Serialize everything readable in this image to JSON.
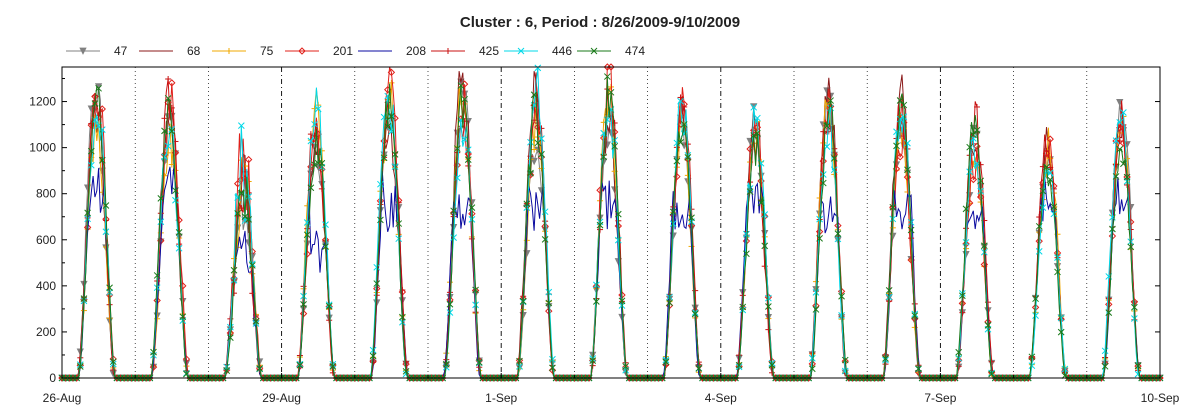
{
  "chart_data": {
    "type": "line",
    "title": "Cluster : 6, Period : 8/26/2009-9/10/2009",
    "xlabel": "",
    "ylabel": "",
    "x_range_days": [
      "2009-08-26",
      "2009-09-10"
    ],
    "x_ticks": [
      "26-Aug",
      "29-Aug",
      "1-Sep",
      "4-Sep",
      "7-Sep",
      "10-Sep"
    ],
    "ylim": [
      0,
      1350
    ],
    "y_ticks": [
      0,
      200,
      400,
      600,
      800,
      1000,
      1200
    ],
    "grid": "vertical dotted lines at midnight of each day; dash-dot at major ticks",
    "legend_position": "top",
    "series": [
      {
        "name": "47",
        "color": "#808080",
        "marker": "triangle-down"
      },
      {
        "name": "68",
        "color": "#8b1a1a",
        "marker": "none"
      },
      {
        "name": "75",
        "color": "#f0a800",
        "marker": "plus"
      },
      {
        "name": "201",
        "color": "#e0201a",
        "marker": "diamond"
      },
      {
        "name": "208",
        "color": "#0a0aa0",
        "marker": "none"
      },
      {
        "name": "425",
        "color": "#c81010",
        "marker": "plus"
      },
      {
        "name": "446",
        "color": "#00d8e8",
        "marker": "x"
      },
      {
        "name": "474",
        "color": "#1a7a1a",
        "marker": "x"
      }
    ],
    "daily_peaks": [
      {
        "date": "2009-08-26",
        "peak": 1290,
        "blue_plateau": 790
      },
      {
        "date": "2009-08-27",
        "peak": 1230,
        "blue_plateau": 850
      },
      {
        "date": "2009-08-28",
        "peak": 1000,
        "blue_plateau": 600
      },
      {
        "date": "2009-08-29",
        "peak": 1200,
        "blue_plateau": 560
      },
      {
        "date": "2009-08-30",
        "peak": 1270,
        "blue_plateau": 720
      },
      {
        "date": "2009-08-31",
        "peak": 1300,
        "blue_plateau": 740
      },
      {
        "date": "2009-09-01",
        "peak": 1280,
        "blue_plateau": 730
      },
      {
        "date": "2009-09-02",
        "peak": 1280,
        "blue_plateau": 760
      },
      {
        "date": "2009-09-03",
        "peak": 1300,
        "blue_plateau": 700
      },
      {
        "date": "2009-09-04",
        "peak": 1180,
        "blue_plateau": 780
      },
      {
        "date": "2009-09-05",
        "peak": 1310,
        "blue_plateau": 700
      },
      {
        "date": "2009-09-06",
        "peak": 1290,
        "blue_plateau": 720
      },
      {
        "date": "2009-09-07",
        "peak": 1150,
        "blue_plateau": 650
      },
      {
        "date": "2009-09-08",
        "peak": 1120,
        "blue_plateau": 750
      },
      {
        "date": "2009-09-09",
        "peak": 1220,
        "blue_plateau": 780
      }
    ]
  }
}
